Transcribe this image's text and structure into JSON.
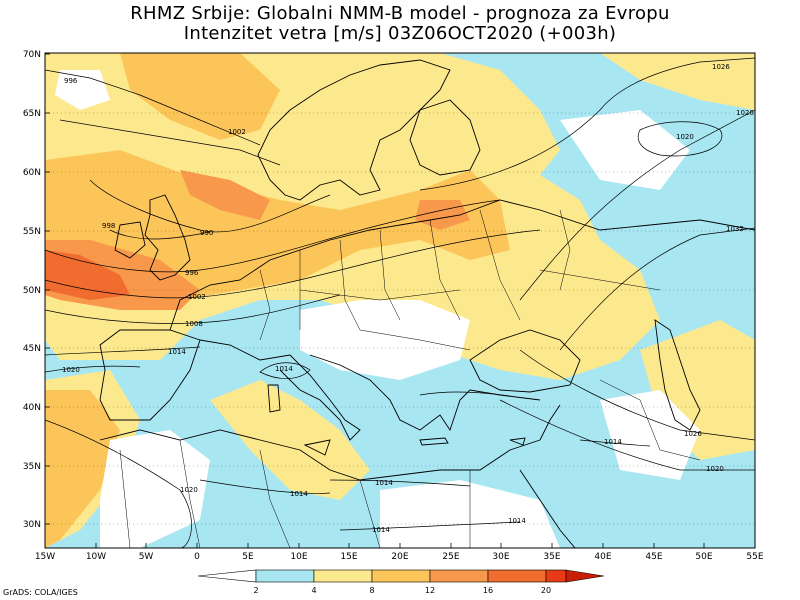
{
  "header": {
    "title_line1": "RHMZ Srbije: Globalni NMM-B model - prognoza za Evropu",
    "title_line2": "Intenzitet vetra [m/s] 03Z06OCT2020 (+003h)"
  },
  "axes": {
    "lat_labels": [
      "70N",
      "65N",
      "60N",
      "55N",
      "50N",
      "45N",
      "40N",
      "35N",
      "30N"
    ],
    "lon_labels": [
      "15W",
      "10W",
      "5W",
      "0",
      "5E",
      "10E",
      "15E",
      "20E",
      "25E",
      "30E",
      "35E",
      "40E",
      "45E",
      "50E",
      "55E"
    ]
  },
  "colorbar": {
    "ticks": [
      "2",
      "4",
      "8",
      "12",
      "16",
      "20"
    ],
    "colors": [
      "#ffffff",
      "#a8e6f2",
      "#fde98d",
      "#fcc55a",
      "#f7984a",
      "#f06d2f",
      "#e63b14",
      "#c81e05"
    ]
  },
  "isobar_labels": [
    "996",
    "1002",
    "990",
    "998",
    "996",
    "1002",
    "1008",
    "1014",
    "1020",
    "1014",
    "1026",
    "1020",
    "1032",
    "1026",
    "1014",
    "1026",
    "1020",
    "1020",
    "1014",
    "1014",
    "1014",
    "1014"
  ],
  "footer": {
    "text": "GrADS: COLA/IGES"
  }
}
